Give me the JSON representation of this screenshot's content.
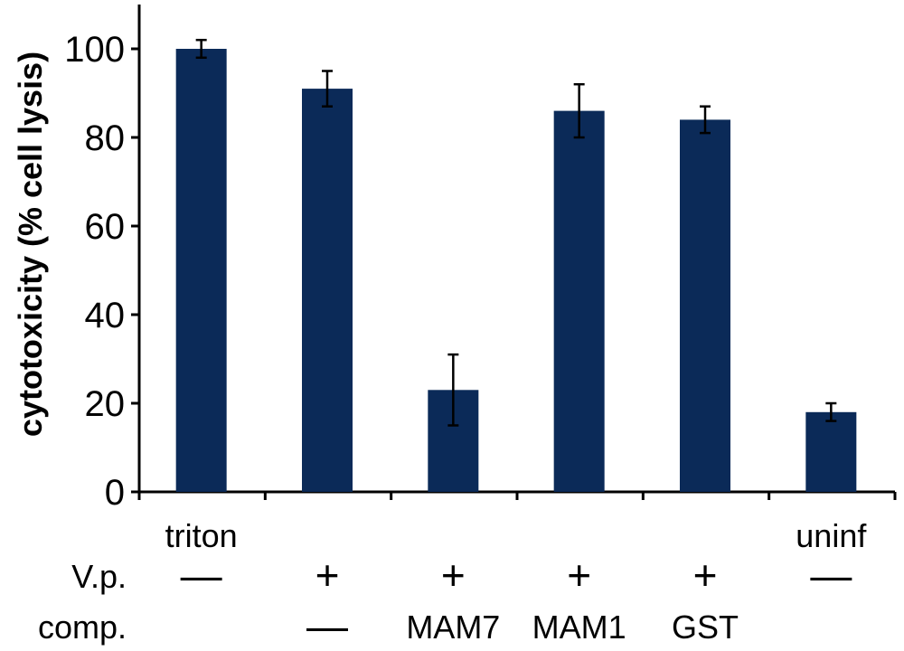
{
  "chart_data": {
    "type": "bar",
    "title": "",
    "xlabel": "",
    "ylabel": "cytotoxicity (% cell lysis)",
    "ylim": [
      0,
      110
    ],
    "yticks": [
      0,
      20,
      40,
      60,
      80,
      100
    ],
    "categories": [
      "triton",
      "",
      "",
      "",
      "",
      "uninf"
    ],
    "values": [
      100,
      91,
      23,
      86,
      84,
      18
    ],
    "errors": [
      2,
      4,
      8,
      6,
      3,
      2
    ],
    "bar_color": "#0b2a58",
    "grid": false,
    "legend": "none",
    "rows": [
      {
        "label": "V.p.",
        "values": [
          "—",
          "+",
          "+",
          "+",
          "+",
          "—"
        ]
      },
      {
        "label": "comp.",
        "values": [
          "",
          "—",
          "MAM7",
          "MAM1",
          "GST",
          ""
        ]
      }
    ]
  }
}
